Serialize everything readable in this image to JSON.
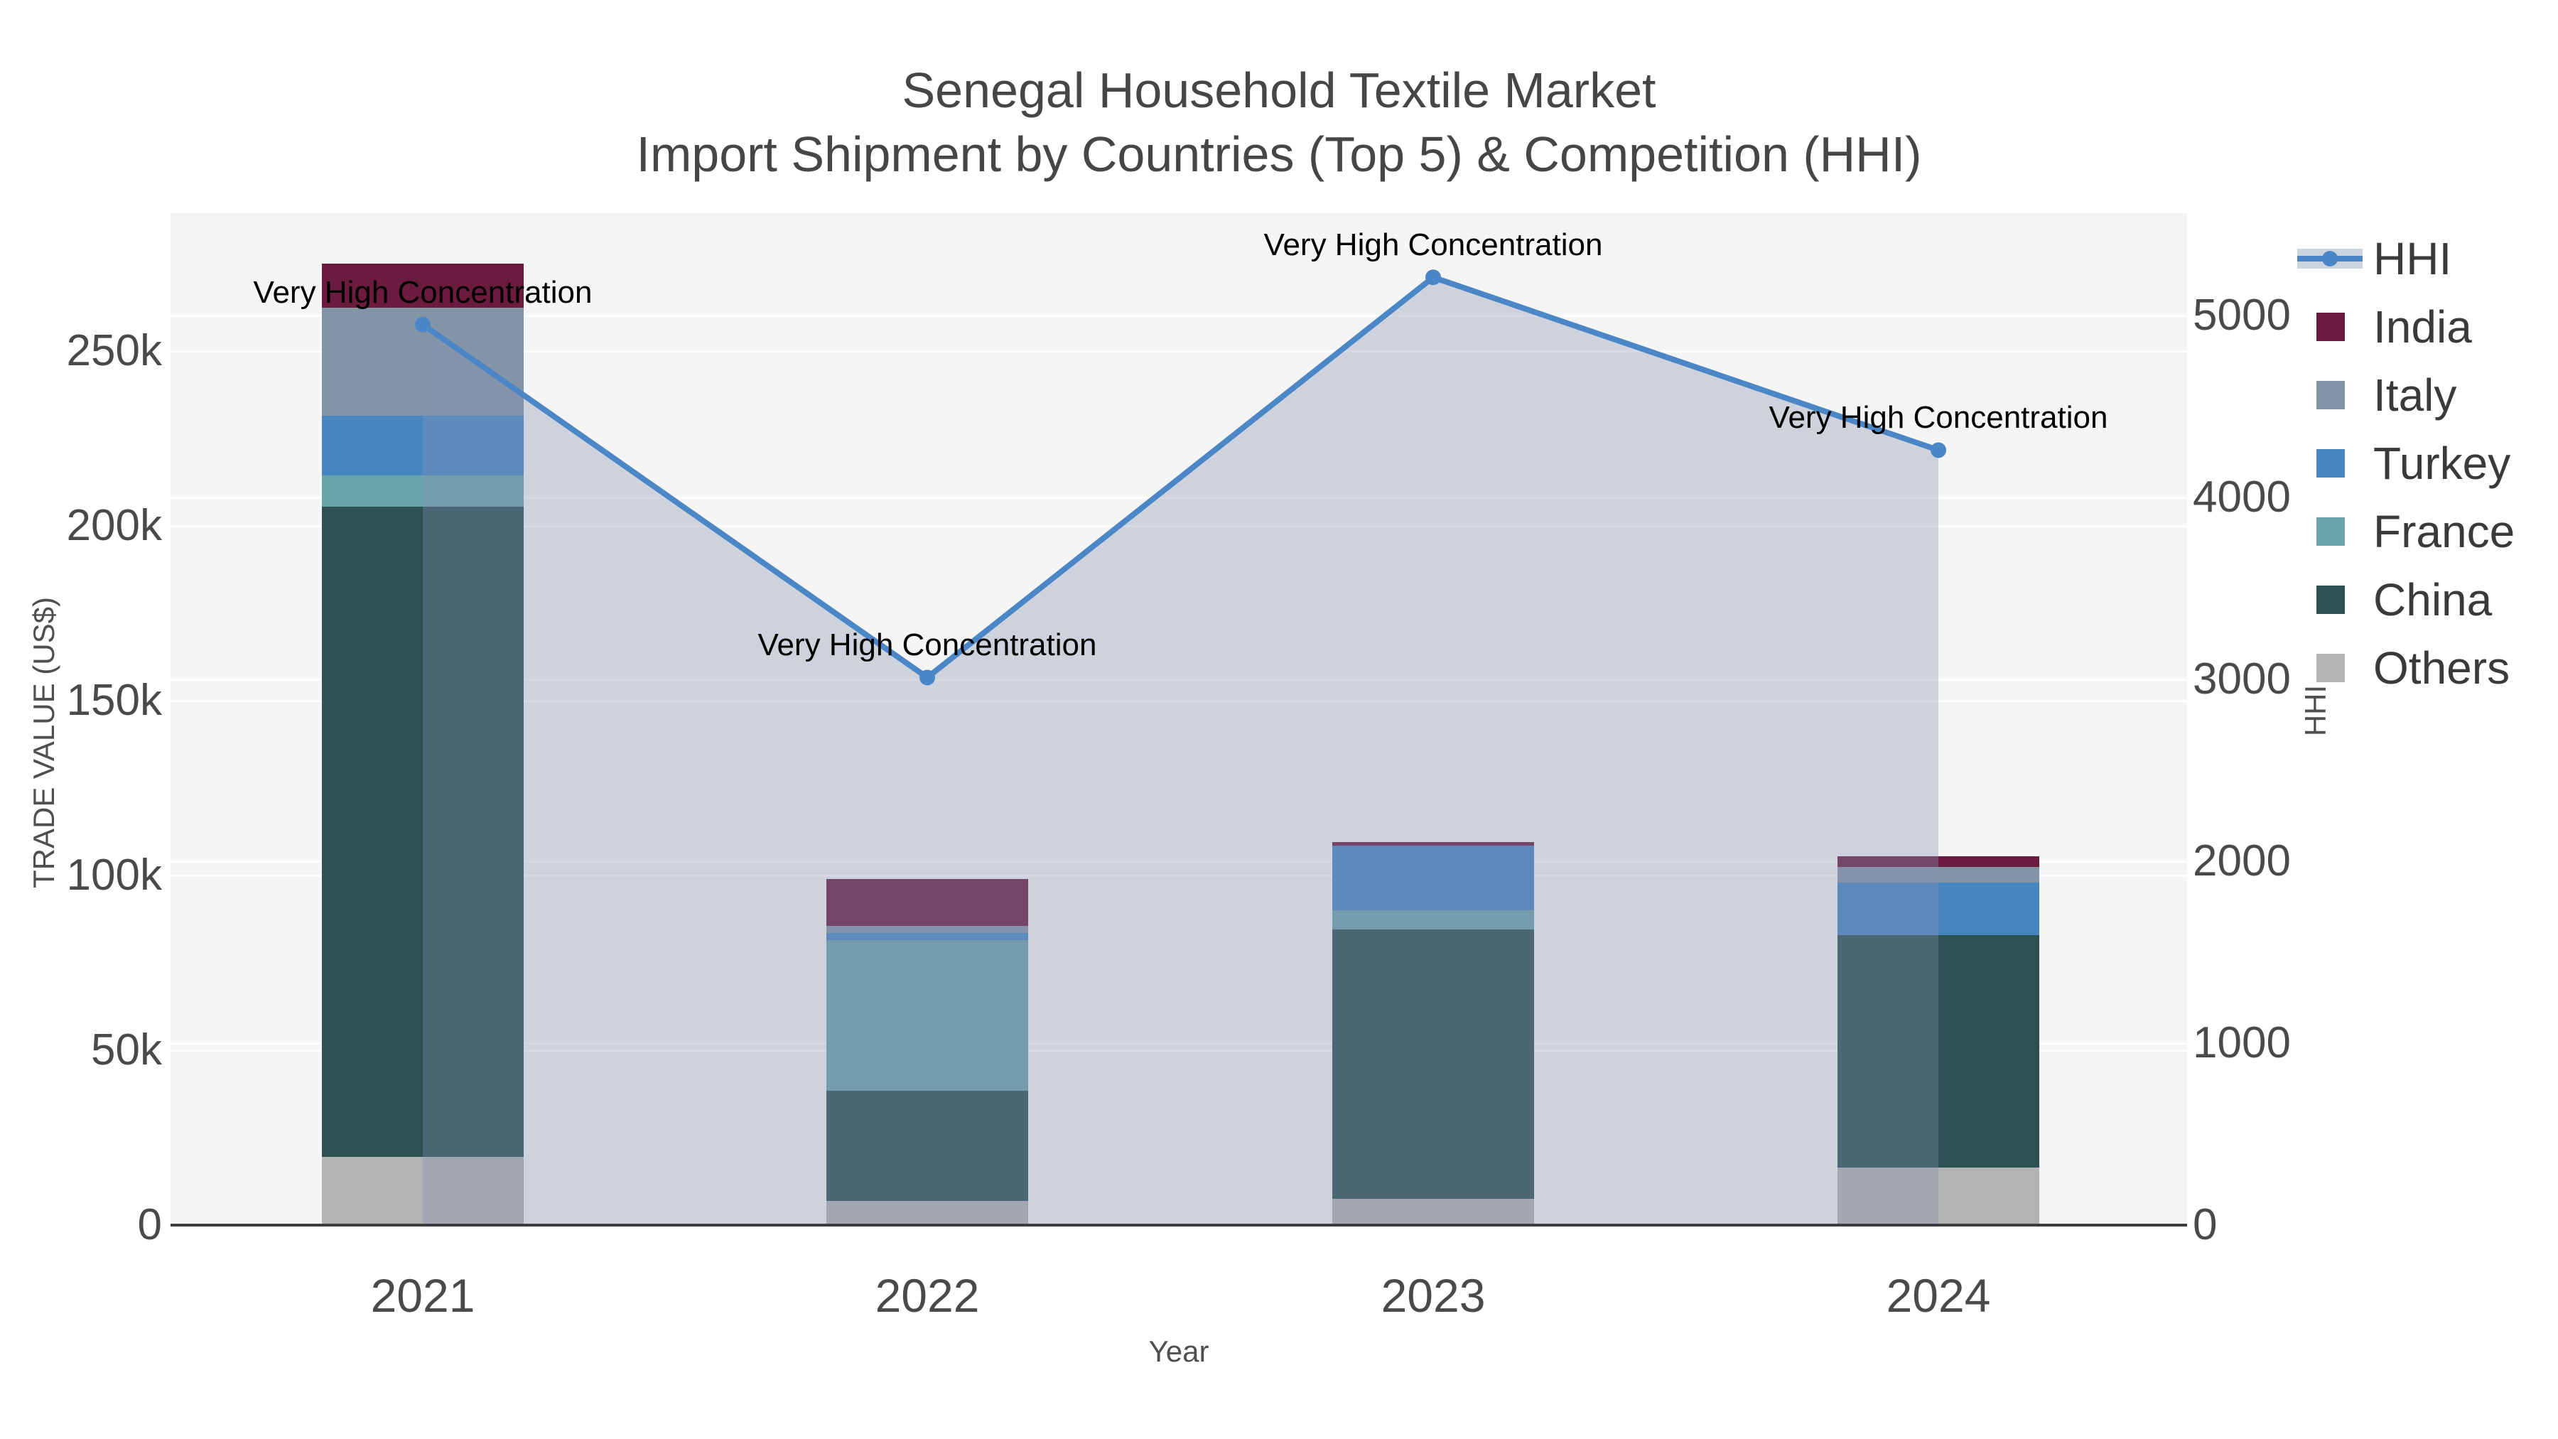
{
  "title": {
    "line1": "Senegal Household Textile Market",
    "line2": "Import Shipment by Countries (Top 5) & Competition (HHI)"
  },
  "axes": {
    "x": {
      "label": "Year",
      "ticks": [
        "2021",
        "2022",
        "2023",
        "2024"
      ]
    },
    "y_left": {
      "label": "TRADE VALUE (US$)",
      "ticks": [
        "0",
        "50k",
        "100k",
        "150k",
        "200k",
        "250k"
      ],
      "tick_values": [
        0,
        50000,
        100000,
        150000,
        200000,
        250000
      ]
    },
    "y_right": {
      "label": "HHI",
      "ticks": [
        "0",
        "1000",
        "2000",
        "3000",
        "4000",
        "5000"
      ],
      "tick_values": [
        0,
        1000,
        2000,
        3000,
        4000,
        5000
      ]
    }
  },
  "legend": {
    "items": [
      {
        "label": "HHI",
        "type": "line",
        "color": "#4b87c6"
      },
      {
        "label": "India",
        "type": "swatch",
        "color": "#6b1c3e"
      },
      {
        "label": "Italy",
        "type": "swatch",
        "color": "#8394a6"
      },
      {
        "label": "Turkey",
        "type": "swatch",
        "color": "#4886c0"
      },
      {
        "label": "France",
        "type": "swatch",
        "color": "#69a4aa"
      },
      {
        "label": "China",
        "type": "swatch",
        "color": "#2d5153"
      },
      {
        "label": "Others",
        "type": "swatch",
        "color": "#b3b3b3"
      }
    ]
  },
  "chart_data": {
    "type": "bar",
    "subtype": "stacked bars (trade value by country) with HHI line + translucent area fill",
    "title": "Senegal Household Textile Market — Import Shipment by Countries (Top 5) & Competition (HHI)",
    "categories": [
      "2021",
      "2022",
      "2023",
      "2024"
    ],
    "series": [
      {
        "name": "Others",
        "color": "#b3b3b3",
        "values": [
          19500,
          7000,
          7500,
          16500
        ]
      },
      {
        "name": "China",
        "color": "#2d5153",
        "values": [
          186000,
          31500,
          77000,
          66500
        ]
      },
      {
        "name": "France",
        "color": "#69a4aa",
        "values": [
          9000,
          43000,
          5500,
          0
        ]
      },
      {
        "name": "Turkey",
        "color": "#4886c0",
        "values": [
          17000,
          2000,
          18500,
          15000
        ]
      },
      {
        "name": "Italy",
        "color": "#8394a6",
        "values": [
          31000,
          2000,
          0,
          4500
        ]
      },
      {
        "name": "India",
        "color": "#6b1c3e",
        "values": [
          12500,
          13500,
          1000,
          3000
        ]
      }
    ],
    "bar_totals": [
      275000,
      99000,
      109500,
      105500
    ],
    "line_series": {
      "name": "HHI",
      "color": "#4b87c6",
      "area_fill": "rgba(135,146,177,0.35)",
      "values": [
        4950,
        3010,
        5210,
        4260
      ]
    },
    "annotations": [
      {
        "category": "2021",
        "text": "Very High Concentration"
      },
      {
        "category": "2022",
        "text": "Very High Concentration"
      },
      {
        "category": "2023",
        "text": "Very High Concentration"
      },
      {
        "category": "2024",
        "text": "Very High Concentration"
      }
    ],
    "xlabel": "Year",
    "ylabel_left": "TRADE VALUE (US$)",
    "ylabel_right": "HHI",
    "ylim_left": [
      0,
      289000
    ],
    "ylim_right": [
      0,
      5560
    ],
    "plot_bg": "#f5f5f5",
    "grid": true,
    "legend_position": "outside-top-right"
  }
}
